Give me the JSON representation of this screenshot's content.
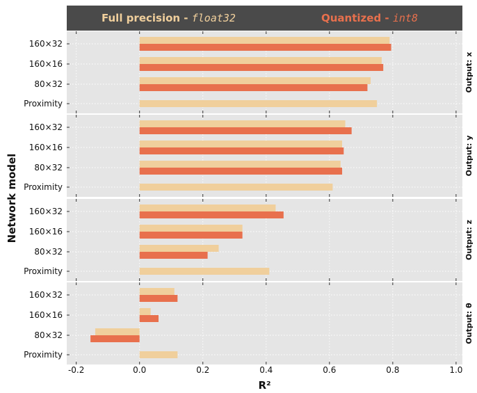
{
  "legend": [
    {
      "label": "Full precision - ",
      "code": "float32"
    },
    {
      "label": "Quantized - ",
      "code": "int8"
    }
  ],
  "colors": {
    "full_precision": "#f0cf9c",
    "quantized": "#e8704d",
    "panel": "#e5e5e5",
    "legend_bg": "#4a4a4a",
    "grid": "#ffffff"
  },
  "chart_data": {
    "type": "bar",
    "orientation": "horizontal",
    "xlabel": "R²",
    "ylabel": "Network model",
    "xlim": [
      -0.23,
      1.02
    ],
    "xticks": [
      -0.2,
      0.0,
      0.2,
      0.4,
      0.6,
      0.8,
      1.0
    ],
    "xtick_labels": [
      "-0.2",
      "0.0",
      "0.2",
      "0.4",
      "0.6",
      "0.8",
      "1.0"
    ],
    "grid": true,
    "legend_position": "top",
    "categories": [
      "160×32",
      "160×16",
      "80×32",
      "Proximity"
    ],
    "series_names": [
      "Full precision - float32",
      "Quantized - int8"
    ],
    "facets": [
      {
        "label": "Output: x",
        "series": [
          {
            "name": "Full precision - float32",
            "values": [
              0.79,
              0.765,
              0.73,
              0.75
            ]
          },
          {
            "name": "Quantized - int8",
            "values": [
              0.795,
              0.77,
              0.72,
              null
            ]
          }
        ]
      },
      {
        "label": "Output: y",
        "series": [
          {
            "name": "Full precision - float32",
            "values": [
              0.65,
              0.64,
              0.635,
              0.61
            ]
          },
          {
            "name": "Quantized - int8",
            "values": [
              0.67,
              0.645,
              0.64,
              null
            ]
          }
        ]
      },
      {
        "label": "Output: z",
        "series": [
          {
            "name": "Full precision - float32",
            "values": [
              0.43,
              0.325,
              0.25,
              0.41
            ]
          },
          {
            "name": "Quantized - int8",
            "values": [
              0.455,
              0.325,
              0.215,
              null
            ]
          }
        ]
      },
      {
        "label": "Output: θ",
        "series": [
          {
            "name": "Full precision - float32",
            "values": [
              0.11,
              0.035,
              -0.14,
              0.12
            ]
          },
          {
            "name": "Quantized - int8",
            "values": [
              0.12,
              0.06,
              -0.155,
              null
            ]
          }
        ]
      }
    ]
  }
}
